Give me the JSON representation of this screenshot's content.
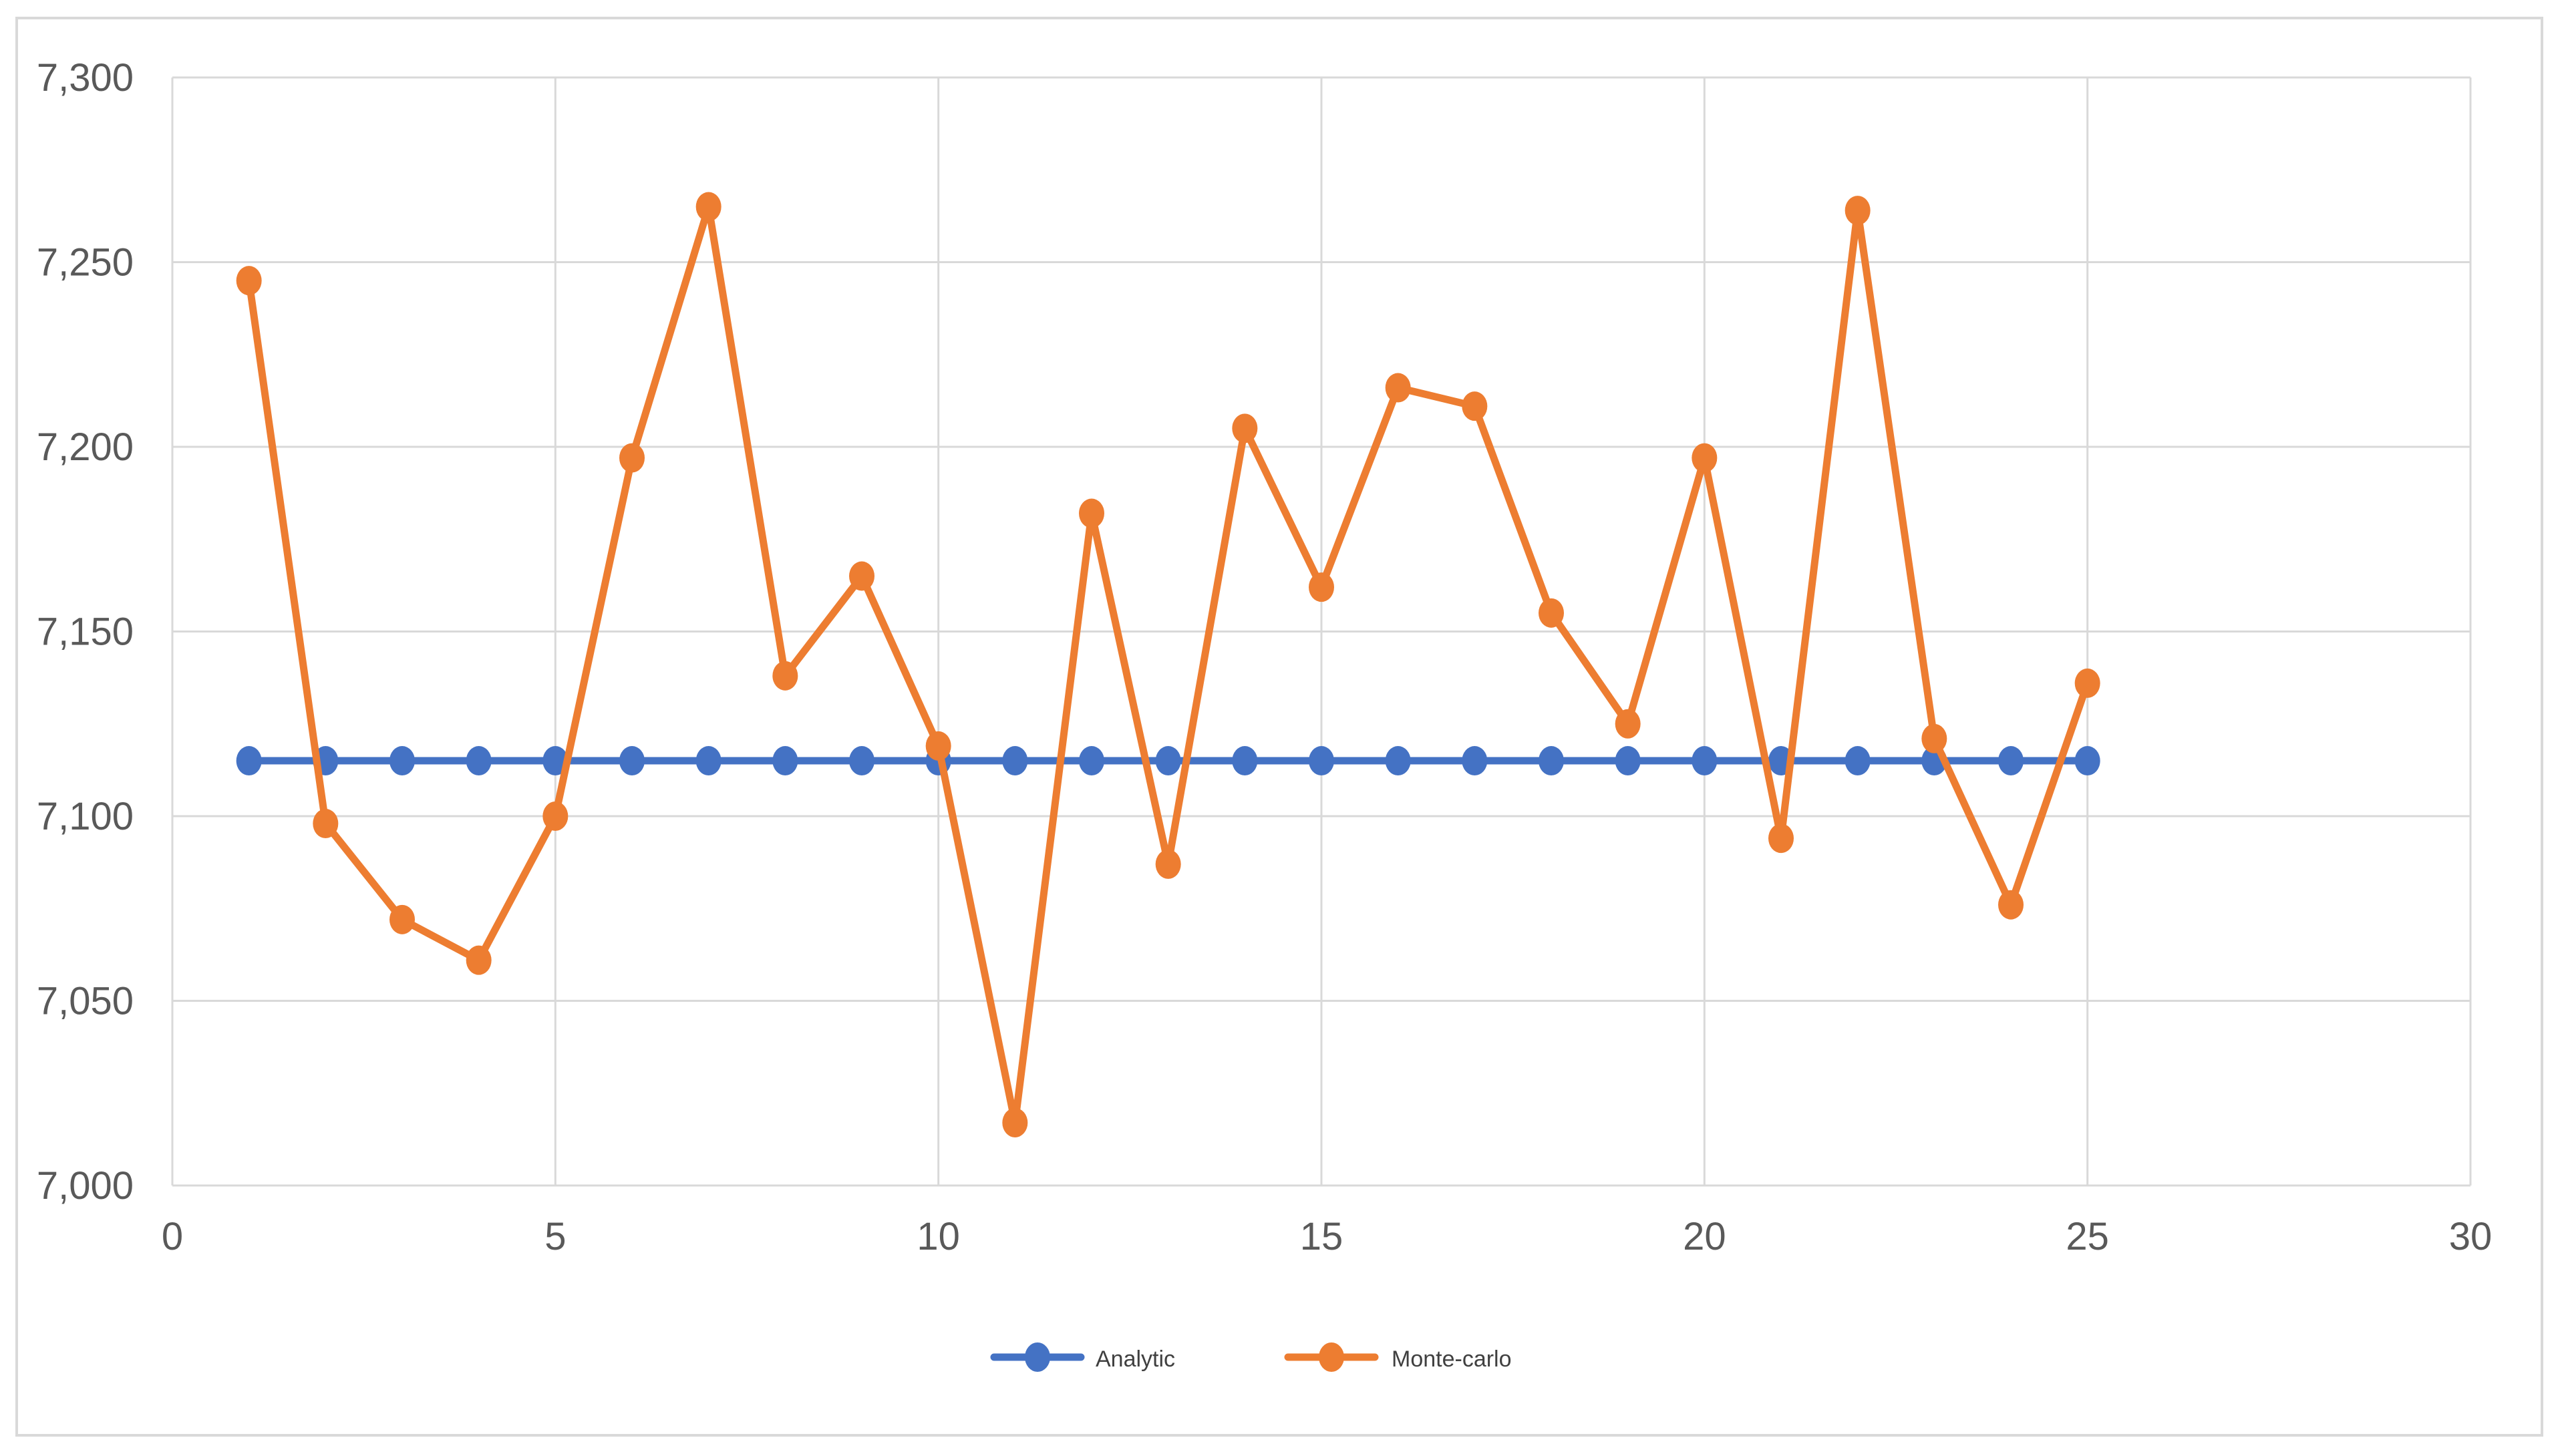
{
  "chart_data": {
    "type": "line",
    "title": "",
    "xlabel": "",
    "ylabel": "",
    "xlim": [
      0,
      30
    ],
    "ylim": [
      7000,
      7300
    ],
    "x_ticks": [
      0,
      5,
      10,
      15,
      20,
      25,
      30
    ],
    "y_ticks": [
      7000,
      7050,
      7100,
      7150,
      7200,
      7250,
      7300
    ],
    "x_tick_labels": [
      "0",
      "5",
      "10",
      "15",
      "20",
      "25",
      "30"
    ],
    "y_tick_labels": [
      "7,000",
      "7,050",
      "7,100",
      "7,150",
      "7,200",
      "7,250",
      "7,300"
    ],
    "grid": true,
    "legend_position": "bottom",
    "x": [
      1,
      2,
      3,
      4,
      5,
      6,
      7,
      8,
      9,
      10,
      11,
      12,
      13,
      14,
      15,
      16,
      17,
      18,
      19,
      20,
      21,
      22,
      23,
      24,
      25
    ],
    "series": [
      {
        "name": "Analytic",
        "color": "#4472C4",
        "values": [
          7115,
          7115,
          7115,
          7115,
          7115,
          7115,
          7115,
          7115,
          7115,
          7115,
          7115,
          7115,
          7115,
          7115,
          7115,
          7115,
          7115,
          7115,
          7115,
          7115,
          7115,
          7115,
          7115,
          7115,
          7115
        ]
      },
      {
        "name": "Monte-carlo",
        "color": "#ED7D31",
        "values": [
          7245,
          7098,
          7072,
          7061,
          7100,
          7197,
          7265,
          7138,
          7165,
          7119,
          7017,
          7182,
          7087,
          7205,
          7162,
          7216,
          7211,
          7155,
          7125,
          7197,
          7094,
          7264,
          7121,
          7076,
          7136
        ]
      }
    ]
  },
  "colors": {
    "grid": "#D9D9D9",
    "axis_text": "#595959",
    "frame": "#D9D9D9"
  }
}
